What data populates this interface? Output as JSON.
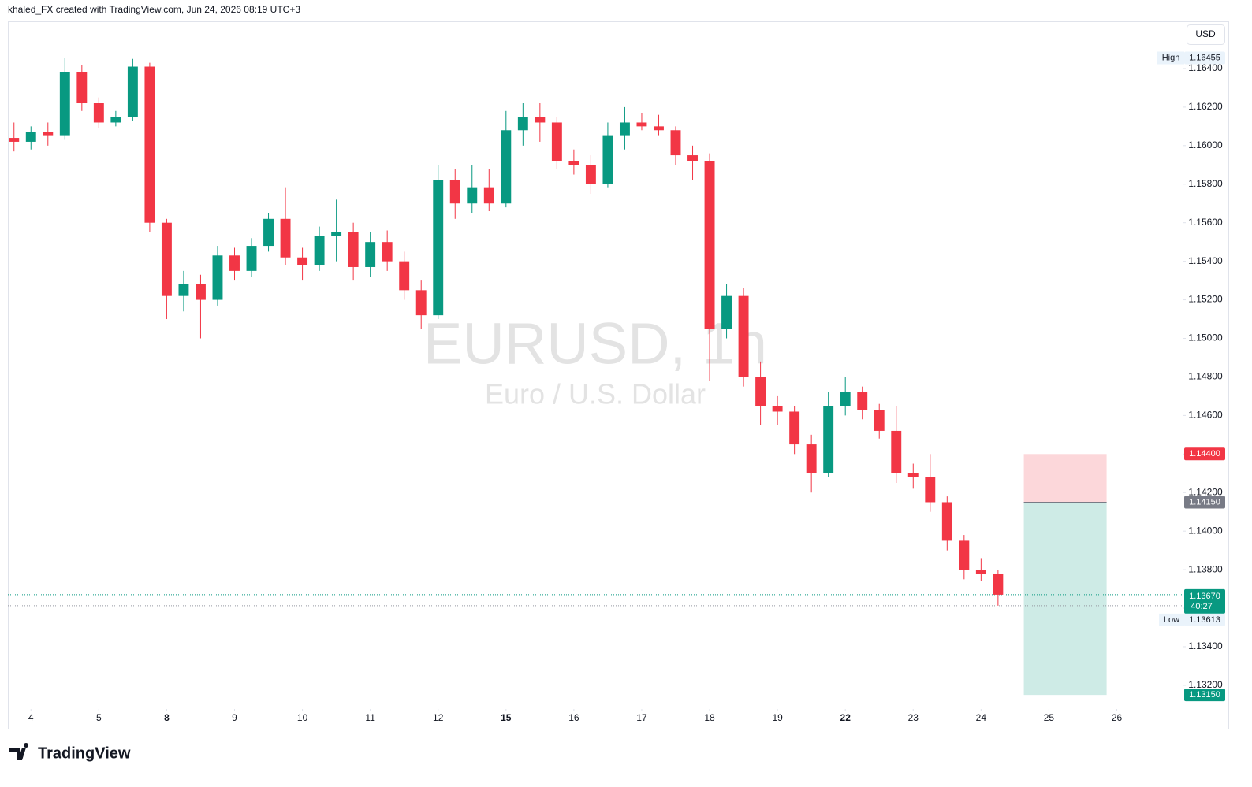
{
  "header": {
    "attribution": "khaled_FX created with TradingView.com, Jun 24, 2026 08:19 UTC+3"
  },
  "footer": {
    "brand": "TradingView"
  },
  "chart_data": {
    "type": "candlestick",
    "symbol": "EURUSD, 1h",
    "description": "Euro / U.S. Dollar",
    "currency": "USD",
    "up_color": "#089981",
    "down_color": "#f23645",
    "x": [
      -0.25,
      0,
      0.25,
      0.5,
      0.75,
      1,
      1.25,
      1.5,
      1.75,
      2,
      2.25,
      2.5,
      2.75,
      3,
      3.25,
      3.5,
      3.75,
      4,
      4.25,
      4.5,
      4.75,
      5,
      5.25,
      5.5,
      5.75,
      6,
      6.25,
      6.5,
      6.75,
      7,
      7.25,
      7.5,
      7.75,
      8,
      8.25,
      8.5,
      8.75,
      9,
      9.25,
      9.5,
      9.75,
      10,
      10.25,
      10.5,
      10.75,
      11,
      11.25,
      11.5,
      11.75,
      12,
      12.25,
      12.5,
      12.75,
      13,
      13.25,
      13.5,
      13.75,
      14,
      14.25
    ],
    "open": [
      1.1604,
      1.1602,
      1.1607,
      1.1605,
      1.1638,
      1.1622,
      1.1612,
      1.1615,
      1.1641,
      1.156,
      1.1522,
      1.1528,
      1.152,
      1.1543,
      1.1535,
      1.1548,
      1.1562,
      1.1542,
      1.1538,
      1.1553,
      1.1555,
      1.1537,
      1.155,
      1.154,
      1.1525,
      1.1512,
      1.1582,
      1.157,
      1.1578,
      1.157,
      1.1608,
      1.1615,
      1.1612,
      1.1592,
      1.159,
      1.158,
      1.1605,
      1.1612,
      1.161,
      1.1608,
      1.1595,
      1.1592,
      1.1505,
      1.1522,
      1.148,
      1.1465,
      1.1462,
      1.1445,
      1.143,
      1.1465,
      1.1472,
      1.1463,
      1.1452,
      1.143,
      1.1428,
      1.1415,
      1.1395,
      1.138,
      1.1378
    ],
    "high": [
      1.1612,
      1.161,
      1.1612,
      1.16455,
      1.1642,
      1.1625,
      1.1618,
      1.1645,
      1.1643,
      1.1562,
      1.1535,
      1.1533,
      1.1548,
      1.1547,
      1.1552,
      1.1565,
      1.1578,
      1.1547,
      1.1558,
      1.1572,
      1.156,
      1.1555,
      1.1556,
      1.1545,
      1.153,
      1.159,
      1.1588,
      1.159,
      1.1588,
      1.1618,
      1.1622,
      1.1622,
      1.1615,
      1.1598,
      1.1595,
      1.1612,
      1.162,
      1.1617,
      1.1616,
      1.161,
      1.16,
      1.1596,
      1.1528,
      1.1526,
      1.1488,
      1.147,
      1.1465,
      1.145,
      1.1472,
      1.148,
      1.1475,
      1.1466,
      1.1465,
      1.1435,
      1.144,
      1.1418,
      1.1398,
      1.1386,
      1.138
    ],
    "low": [
      1.1597,
      1.1598,
      1.16,
      1.1603,
      1.1618,
      1.1609,
      1.161,
      1.1613,
      1.1555,
      1.151,
      1.1514,
      1.15,
      1.1517,
      1.153,
      1.1532,
      1.1545,
      1.1538,
      1.153,
      1.1535,
      1.154,
      1.153,
      1.1532,
      1.1535,
      1.152,
      1.1505,
      1.151,
      1.1562,
      1.1565,
      1.1566,
      1.1568,
      1.16,
      1.1602,
      1.1588,
      1.1585,
      1.1575,
      1.1578,
      1.1598,
      1.1608,
      1.1605,
      1.159,
      1.1582,
      1.1478,
      1.15,
      1.1475,
      1.1455,
      1.1455,
      1.144,
      1.142,
      1.1428,
      1.146,
      1.1458,
      1.1448,
      1.1425,
      1.1422,
      1.141,
      1.139,
      1.1375,
      1.1374,
      1.13613
    ],
    "close": [
      1.1602,
      1.1607,
      1.1605,
      1.1638,
      1.1622,
      1.1612,
      1.1615,
      1.1641,
      1.156,
      1.1522,
      1.1528,
      1.152,
      1.1543,
      1.1535,
      1.1548,
      1.1562,
      1.1542,
      1.1538,
      1.1553,
      1.1555,
      1.1537,
      1.155,
      1.154,
      1.1525,
      1.1512,
      1.1582,
      1.157,
      1.1578,
      1.157,
      1.1608,
      1.1615,
      1.1612,
      1.1592,
      1.159,
      1.158,
      1.1605,
      1.1612,
      1.161,
      1.1608,
      1.1595,
      1.1592,
      1.1505,
      1.1522,
      1.148,
      1.1465,
      1.1462,
      1.1445,
      1.143,
      1.1465,
      1.1472,
      1.1463,
      1.1452,
      1.143,
      1.1428,
      1.1415,
      1.1395,
      1.138,
      1.1378,
      1.1367
    ],
    "xlim": [
      -0.34,
      16.97
    ],
    "ylim": [
      1.13077,
      1.16641
    ],
    "xticks": [
      {
        "value": 0,
        "label": "4"
      },
      {
        "value": 1,
        "label": "5"
      },
      {
        "value": 2,
        "label": "8",
        "bold": true
      },
      {
        "value": 3,
        "label": "9"
      },
      {
        "value": 4,
        "label": "10"
      },
      {
        "value": 5,
        "label": "11"
      },
      {
        "value": 6,
        "label": "12"
      },
      {
        "value": 7,
        "label": "15",
        "bold": true
      },
      {
        "value": 8,
        "label": "16"
      },
      {
        "value": 9,
        "label": "17"
      },
      {
        "value": 10,
        "label": "18"
      },
      {
        "value": 11,
        "label": "19"
      },
      {
        "value": 12,
        "label": "22",
        "bold": true
      },
      {
        "value": 13,
        "label": "23"
      },
      {
        "value": 14,
        "label": "24"
      },
      {
        "value": 15,
        "label": "25"
      },
      {
        "value": 16,
        "label": "26"
      }
    ],
    "yticks": [
      {
        "value": 1.132,
        "label": "1.13200"
      },
      {
        "value": 1.134,
        "label": "1.13400"
      },
      {
        "value": 1.136,
        "label": "1.13600"
      },
      {
        "value": 1.138,
        "label": "1.13800"
      },
      {
        "value": 1.14,
        "label": "1.14000"
      },
      {
        "value": 1.142,
        "label": "1.14200"
      },
      {
        "value": 1.144,
        "label": "1.14400"
      },
      {
        "value": 1.146,
        "label": "1.14600"
      },
      {
        "value": 1.148,
        "label": "1.14800"
      },
      {
        "value": 1.15,
        "label": "1.15000"
      },
      {
        "value": 1.152,
        "label": "1.15200"
      },
      {
        "value": 1.154,
        "label": "1.15400"
      },
      {
        "value": 1.156,
        "label": "1.15600"
      },
      {
        "value": 1.158,
        "label": "1.15800"
      },
      {
        "value": 1.16,
        "label": "1.16000"
      },
      {
        "value": 1.162,
        "label": "1.16200"
      },
      {
        "value": 1.164,
        "label": "1.16400"
      }
    ],
    "high_marker": {
      "label": "High",
      "value": 1.16455
    },
    "low_marker": {
      "label": "Low",
      "value": 1.13613
    },
    "last_price": {
      "value": 1.1367,
      "label": "1.13670",
      "countdown": "40:27"
    },
    "position": {
      "x_start": 14.63,
      "x_end": 15.85,
      "stop": {
        "value": 1.144,
        "label": "1.14400"
      },
      "entry": {
        "value": 1.1415,
        "label": "1.14150"
      },
      "target": {
        "value": 1.1315,
        "label": "1.13150"
      }
    }
  }
}
